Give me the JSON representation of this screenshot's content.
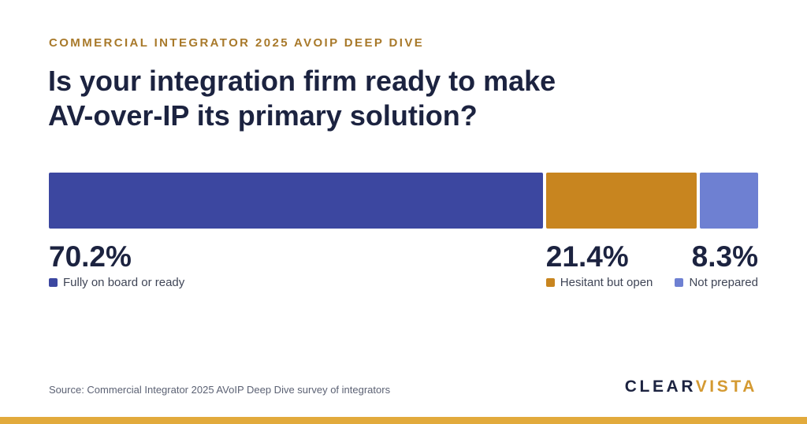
{
  "eyebrow": "COMMERCIAL INTEGRATOR 2025 AVOIP DEEP DIVE",
  "headline": {
    "line1": "Is your integration firm ready to make",
    "line2": "AV-over-IP its primary solution?"
  },
  "chart_data": {
    "type": "bar",
    "subtype": "stacked-horizontal-100",
    "title": "Is your integration firm ready to make AV-over-IP its primary solution?",
    "categories": [
      "Fully on board or ready",
      "Hesitant but open",
      "Not prepared"
    ],
    "values": [
      70.2,
      21.4,
      8.3
    ],
    "value_labels": [
      "70.2%",
      "21.4%",
      "8.3%"
    ],
    "colors": [
      "#3c47a0",
      "#c8851f",
      "#6e80d2"
    ],
    "unit": "%",
    "xlim": [
      0,
      100
    ],
    "grid": false,
    "legend": "below-each-segment"
  },
  "source": "Source: Commercial Integrator 2025 AVoIP Deep Dive survey of integrators",
  "brand": {
    "part1": "CLEAR",
    "part2": "VISTA"
  }
}
